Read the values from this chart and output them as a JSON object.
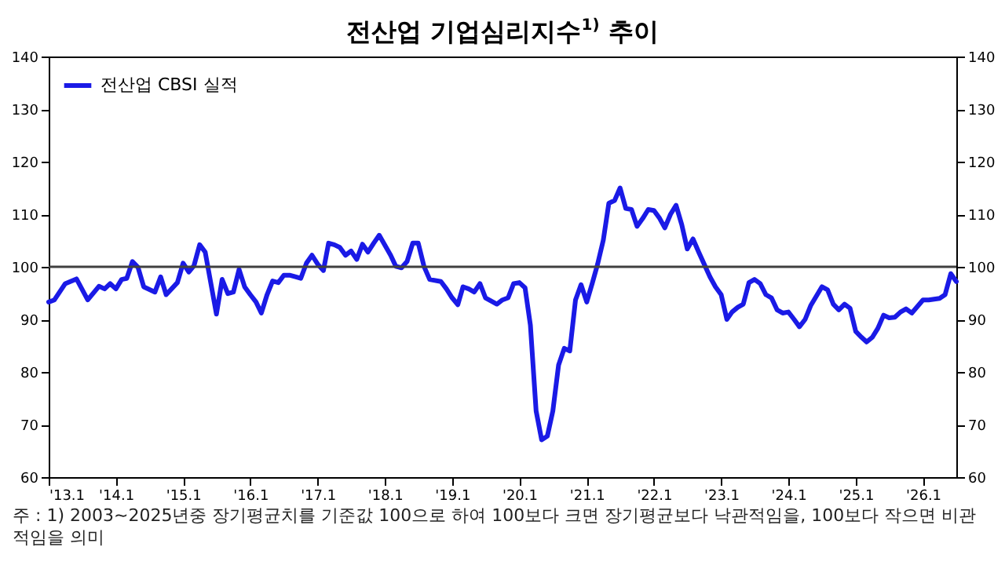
{
  "chart_data": {
    "type": "line",
    "title": "전산업 기업심리지수$^{1)}$ 추이",
    "annotations": [
      "주 : 1) 2003~2025년중 장기평균치를 기준값 100으로 하여 100보다 크면 장기평균보다 낙관적임을, 100보다 작으면 비관적임을 의미"
    ],
    "x": [
      "2013-01",
      "2013-02",
      "2013-04",
      "2013-06",
      "2013-08",
      "2013-10",
      "2013-11",
      "2013-12",
      "2014-01",
      "2014-02",
      "2014-03",
      "2014-04",
      "2014-05",
      "2014-06",
      "2014-08",
      "2014-09",
      "2014-10",
      "2014-12",
      "2015-01",
      "2015-02",
      "2015-03",
      "2015-04",
      "2015-05",
      "2015-07",
      "2015-08",
      "2015-09",
      "2015-10",
      "2015-11",
      "2015-12",
      "2016-01",
      "2016-02",
      "2016-03",
      "2016-04",
      "2016-05",
      "2016-06",
      "2016-07",
      "2016-08",
      "2016-09",
      "2016-10",
      "2016-11",
      "2016-12",
      "2017-01",
      "2017-02",
      "2017-03",
      "2017-04",
      "2017-05",
      "2017-06",
      "2017-07",
      "2017-08",
      "2017-09",
      "2017-10",
      "2017-11",
      "2017-12",
      "2018-02",
      "2018-03",
      "2018-04",
      "2018-05",
      "2018-06",
      "2018-07",
      "2018-08",
      "2018-09",
      "2018-11",
      "2018-12",
      "2019-01",
      "2019-02",
      "2019-03",
      "2019-04",
      "2019-05",
      "2019-06",
      "2019-07",
      "2019-09",
      "2019-10",
      "2019-11",
      "2019-12",
      "2020-01",
      "2020-02",
      "2020-03",
      "2020-04",
      "2020-05",
      "2020-06",
      "2020-07",
      "2020-08",
      "2020-09",
      "2020-10",
      "2020-11",
      "2020-12",
      "2021-01",
      "2021-02",
      "2021-03",
      "2021-04",
      "2021-05",
      "2021-06",
      "2021-07",
      "2021-08",
      "2021-09",
      "2021-10",
      "2021-11",
      "2021-12",
      "2022-01",
      "2022-02",
      "2022-03",
      "2022-04",
      "2022-05",
      "2022-06",
      "2022-07",
      "2022-08",
      "2022-09",
      "2022-11",
      "2022-12",
      "2023-01",
      "2023-02",
      "2023-03",
      "2023-04",
      "2023-05",
      "2023-06",
      "2023-07",
      "2023-08",
      "2023-09",
      "2023-10",
      "2023-11",
      "2023-12",
      "2024-01",
      "2024-02",
      "2024-03",
      "2024-04",
      "2024-05",
      "2024-07",
      "2024-08",
      "2024-09",
      "2024-10",
      "2024-11",
      "2024-12",
      "2025-01",
      "2025-02",
      "2025-03",
      "2025-04",
      "2025-05",
      "2025-06",
      "2025-07",
      "2025-08",
      "2025-09",
      "2025-10",
      "2025-11",
      "2026-01",
      "2026-02",
      "2026-04",
      "2026-05",
      "2026-06",
      "2026-07"
    ],
    "series": [
      {
        "name": "전산업 CBSI 실적",
        "color": "#1a1ae6",
        "values": [
          93.3,
          93.7,
          96.8,
          97.7,
          93.7,
          96.3,
          95.8,
          96.8,
          95.8,
          97.6,
          97.8,
          101,
          99.9,
          96.2,
          95.2,
          98.1,
          94.7,
          97,
          100.7,
          99,
          100.2,
          104.2,
          102.8,
          91,
          97.6,
          94.9,
          95.2,
          99.5,
          96.2,
          94.7,
          93.3,
          91.2,
          94.7,
          97.3,
          97,
          98.4,
          98.4,
          98.1,
          97.8,
          100.7,
          102.2,
          100.5,
          99.3,
          104.5,
          104.2,
          103.7,
          102.2,
          103,
          101.4,
          104.3,
          102.8,
          104.5,
          106,
          102.2,
          100.1,
          99.8,
          101,
          104.5,
          104.5,
          100.1,
          97.6,
          97.2,
          95.8,
          94.1,
          92.8,
          96.2,
          95.8,
          95.2,
          96.8,
          94.1,
          92.9,
          93.7,
          94.1,
          96.8,
          97,
          96,
          88.9,
          72.6,
          67.1,
          67.8,
          72.6,
          81.3,
          84.5,
          84,
          93.7,
          96.6,
          93.3,
          97,
          100.5,
          105.1,
          112.1,
          112.6,
          115,
          111.1,
          110.9,
          107.7,
          109.2,
          110.9,
          110.7,
          109.2,
          107.4,
          110,
          111.7,
          108,
          103.4,
          105.3,
          102.8,
          98.1,
          96.2,
          94.7,
          90,
          91.4,
          92.3,
          92.9,
          97,
          97.6,
          96.8,
          94.7,
          94.1,
          91.8,
          91.2,
          91.4,
          90,
          88.6,
          90,
          92.6,
          96.2,
          95.6,
          92.9,
          91.8,
          92.9,
          92.1,
          87.7,
          86.6,
          85.7,
          86.6,
          88.3,
          90.8,
          90.3,
          90.4,
          91.4,
          92,
          91.2,
          93.7,
          93.7,
          94,
          94.7,
          98.7,
          97.2
        ]
      }
    ],
    "xlim": [
      "2013-01",
      "2026-07"
    ],
    "xticks": [
      {
        "value": "2013-01",
        "label": "'13.1"
      },
      {
        "value": "2014-01",
        "label": "'14.1"
      },
      {
        "value": "2015-01",
        "label": "'15.1"
      },
      {
        "value": "2016-01",
        "label": "'16.1"
      },
      {
        "value": "2017-01",
        "label": "'17.1"
      },
      {
        "value": "2018-01",
        "label": "'18.1"
      },
      {
        "value": "2019-01",
        "label": "'19.1"
      },
      {
        "value": "2020-01",
        "label": "'20.1"
      },
      {
        "value": "2021-01",
        "label": "'21.1"
      },
      {
        "value": "2022-01",
        "label": "'22.1"
      },
      {
        "value": "2023-01",
        "label": "'23.1"
      },
      {
        "value": "2024-01",
        "label": "'24.1"
      },
      {
        "value": "2025-01",
        "label": "'25.1"
      },
      {
        "value": "2026-01",
        "label": "'26.1"
      }
    ],
    "ylim": [
      60,
      140
    ],
    "yticks": [
      60,
      70,
      80,
      90,
      100,
      110,
      120,
      130,
      140
    ],
    "y2lim": [
      60,
      140
    ],
    "y2ticks": [
      60,
      70,
      80,
      90,
      100,
      110,
      120,
      130,
      140
    ],
    "ref_lines": [
      {
        "axis": "y",
        "value": 100,
        "color": "#404040"
      }
    ],
    "legend": "top left",
    "grid": false,
    "marker": "none",
    "line_style": "solid"
  }
}
